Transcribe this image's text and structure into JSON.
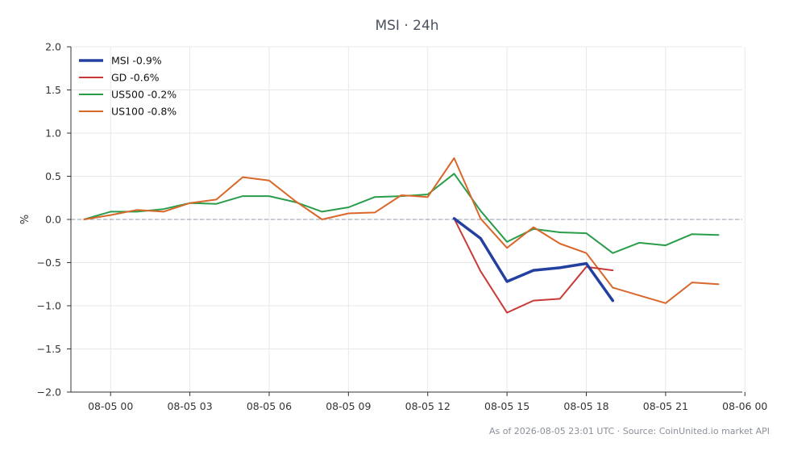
{
  "chart_data": {
    "type": "line",
    "title": "MSI · 24h",
    "xlabel": "",
    "ylabel": "%",
    "xlim": [
      -1.5,
      23.9
    ],
    "ylim": [
      -2.0,
      2.0
    ],
    "x_ticks": [
      {
        "x": 0,
        "label": "08-05 00"
      },
      {
        "x": 3,
        "label": "08-05 03"
      },
      {
        "x": 6,
        "label": "08-05 06"
      },
      {
        "x": 9,
        "label": "08-05 09"
      },
      {
        "x": 12,
        "label": "08-05 12"
      },
      {
        "x": 15,
        "label": "08-05 15"
      },
      {
        "x": 18,
        "label": "08-05 18"
      },
      {
        "x": 21,
        "label": "08-05 21"
      },
      {
        "x": 24,
        "label": "08-06 00"
      }
    ],
    "y_ticks": [
      {
        "y": 2.0,
        "label": "2.0"
      },
      {
        "y": 1.5,
        "label": "1.5"
      },
      {
        "y": 1.0,
        "label": "1.0"
      },
      {
        "y": 0.5,
        "label": "0.5"
      },
      {
        "y": 0.0,
        "label": "0.0"
      },
      {
        "y": -0.5,
        "label": "−0.5"
      },
      {
        "y": -1.0,
        "label": "−1.0"
      },
      {
        "y": -1.5,
        "label": "−1.5"
      },
      {
        "y": -2.0,
        "label": "−2.0"
      }
    ],
    "grid": true,
    "legend_position": "top-left",
    "reference_line": 0.0,
    "series": [
      {
        "name": "MSI -0.9%",
        "color": "#2340a0",
        "width": 3.5,
        "x": [
          13,
          14,
          15,
          16,
          17,
          18,
          19
        ],
        "y": [
          0.01,
          -0.22,
          -0.72,
          -0.59,
          -0.56,
          -0.51,
          -0.94
        ]
      },
      {
        "name": "GD -0.6%",
        "color": "#c93a36",
        "width": 2,
        "x": [
          13,
          14,
          15,
          16,
          17,
          18,
          19
        ],
        "y": [
          0.01,
          -0.6,
          -1.08,
          -0.94,
          -0.92,
          -0.55,
          -0.59
        ]
      },
      {
        "name": "US500 -0.2%",
        "color": "#2a9d4b",
        "width": 2,
        "x": [
          -1,
          0,
          1,
          2,
          3,
          4,
          5,
          6,
          7,
          8,
          9,
          10,
          11,
          12,
          13,
          14,
          15,
          16,
          17,
          18,
          19,
          20,
          21,
          22,
          23
        ],
        "y": [
          0.0,
          0.09,
          0.09,
          0.12,
          0.19,
          0.18,
          0.27,
          0.27,
          0.2,
          0.09,
          0.14,
          0.26,
          0.27,
          0.29,
          0.53,
          0.1,
          -0.26,
          -0.11,
          -0.15,
          -0.16,
          -0.39,
          -0.27,
          -0.3,
          -0.17,
          -0.18
        ]
      },
      {
        "name": "US100 -0.8%",
        "color": "#d9672a",
        "width": 2,
        "x": [
          -1,
          0,
          1,
          2,
          3,
          4,
          5,
          6,
          7,
          8,
          9,
          10,
          11,
          12,
          13,
          14,
          15,
          16,
          17,
          18,
          19,
          20,
          21,
          22,
          23
        ],
        "y": [
          0.0,
          0.05,
          0.11,
          0.09,
          0.19,
          0.23,
          0.49,
          0.45,
          0.21,
          0.0,
          0.07,
          0.08,
          0.28,
          0.26,
          0.71,
          0.01,
          -0.33,
          -0.09,
          -0.28,
          -0.39,
          -0.79,
          -0.88,
          -0.97,
          -0.73,
          -0.75
        ]
      }
    ]
  },
  "footer": "As of 2026-08-05 23:01 UTC · Source: CoinUnited.io market API"
}
